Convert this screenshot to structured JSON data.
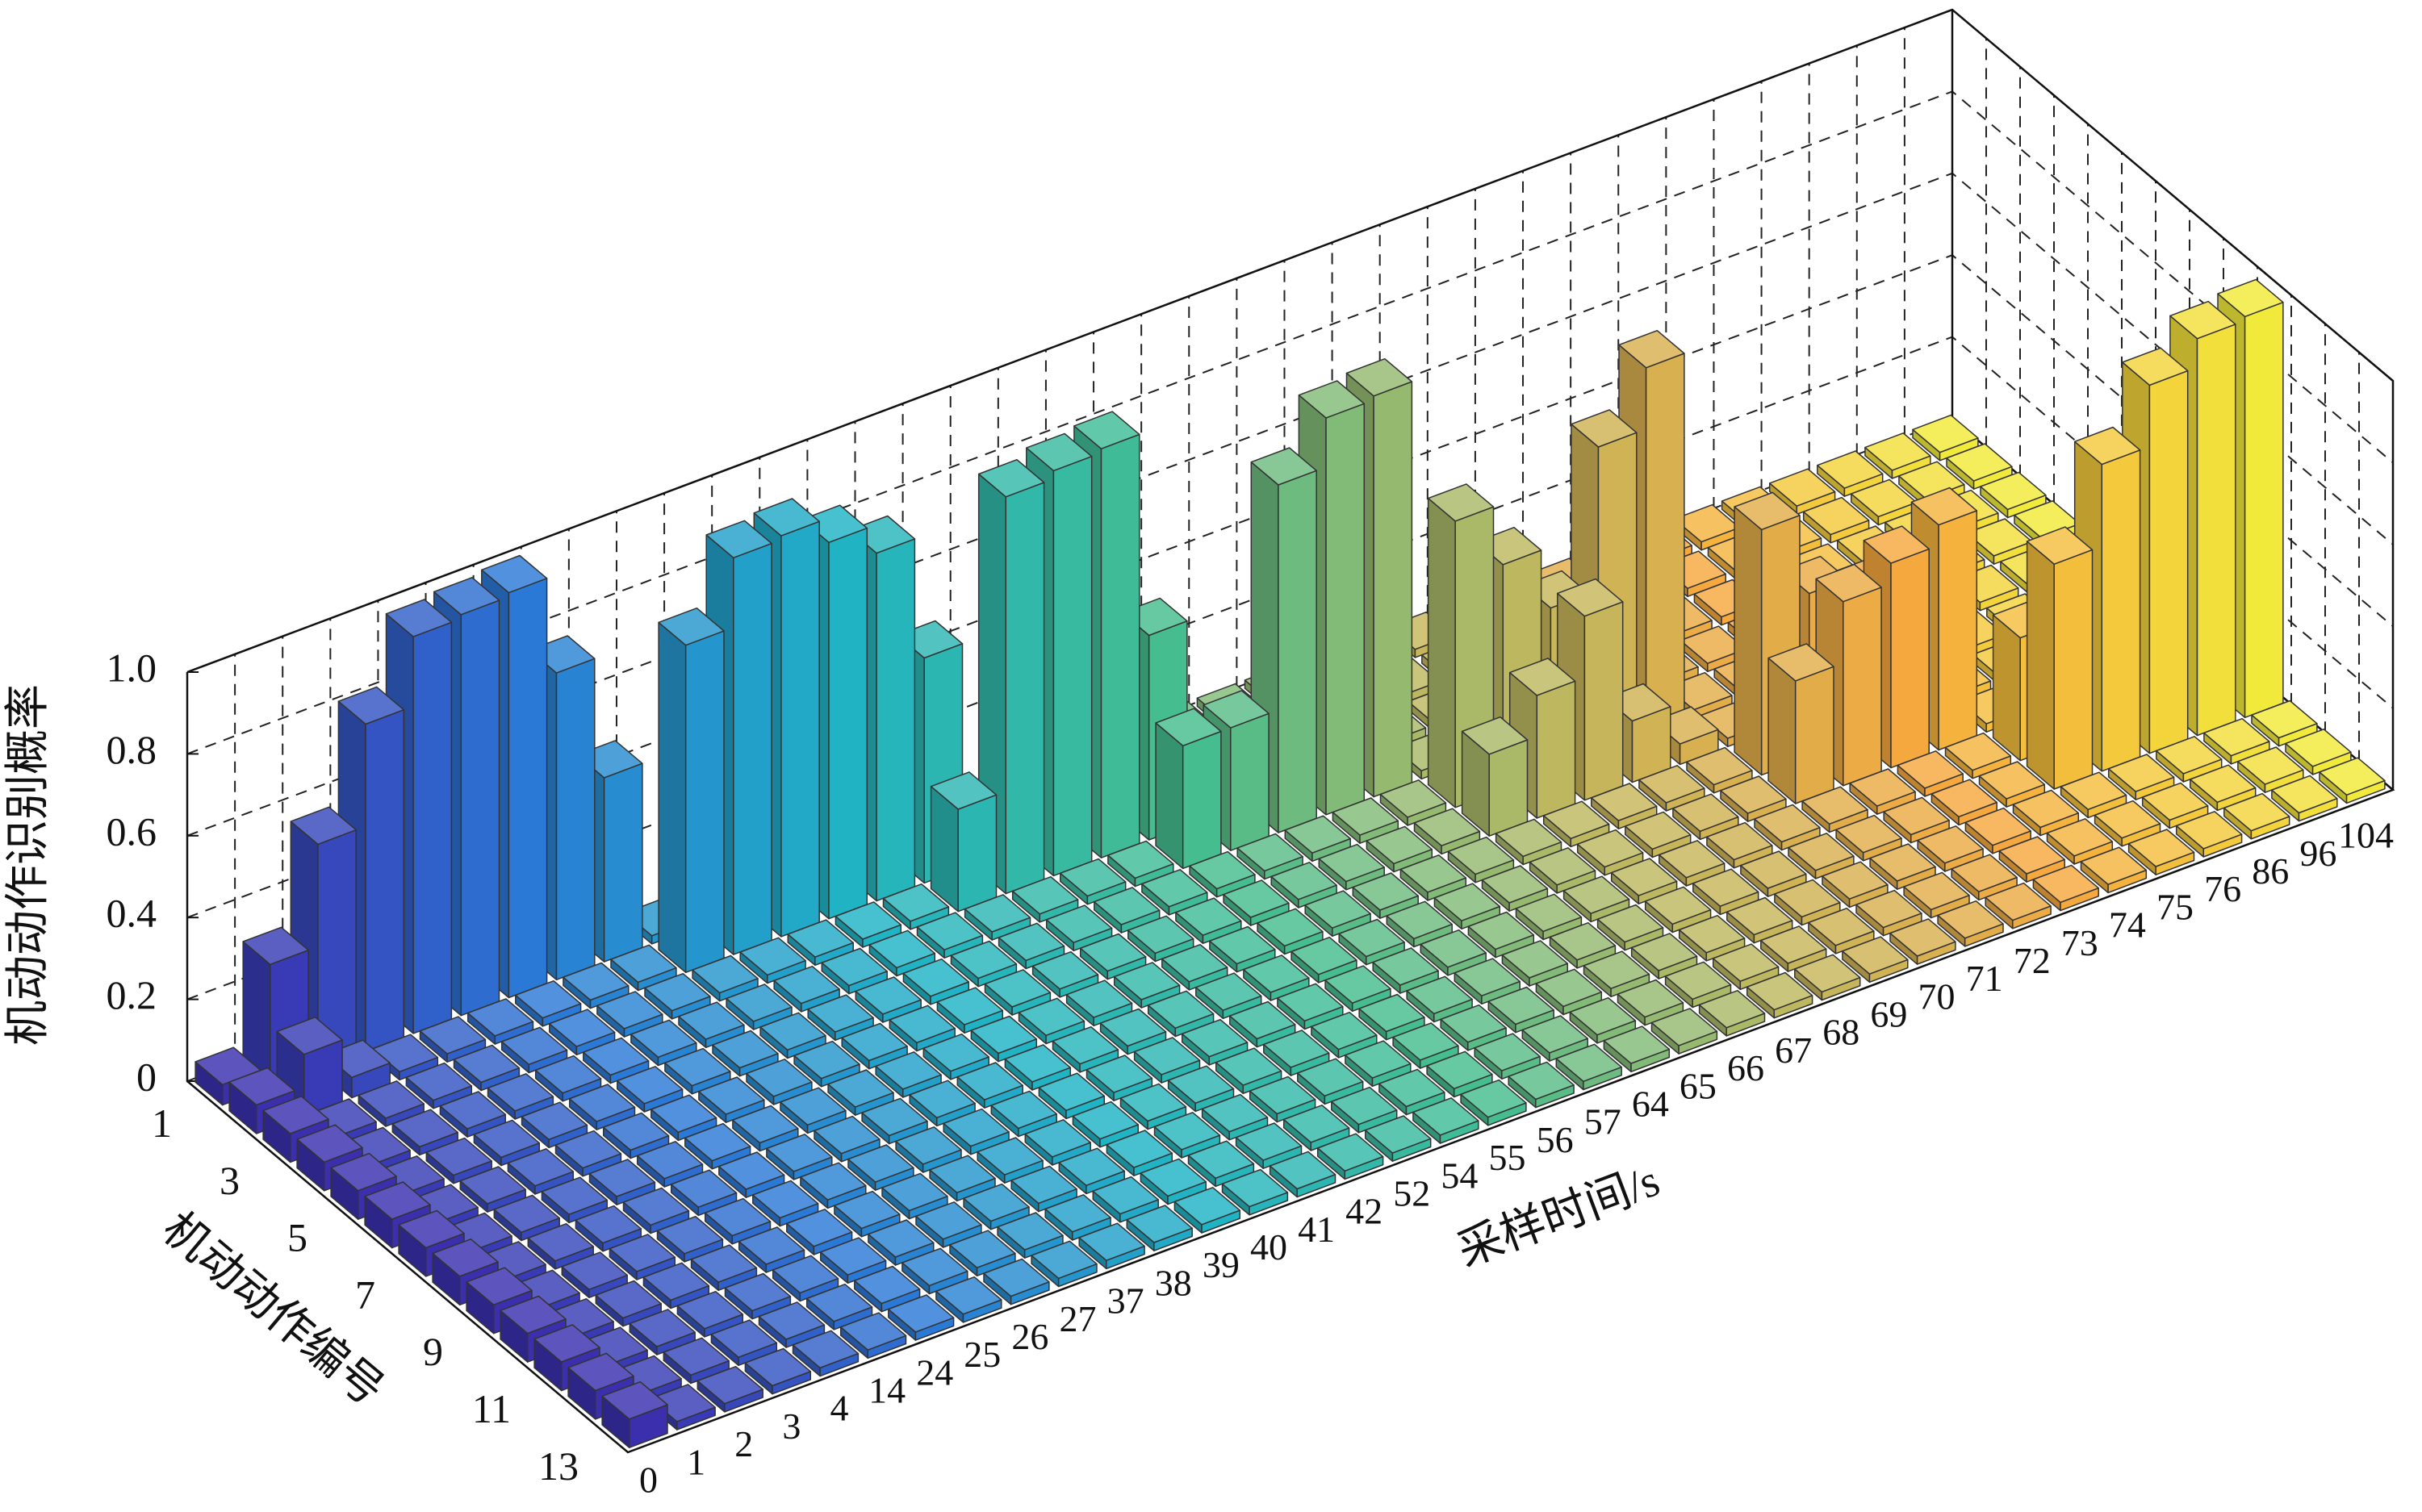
{
  "chart_data": {
    "type": "bar3d",
    "xlabel": "采样时间/s",
    "ylabel": "机动动作编号",
    "zlabel": "机动动作识别概率",
    "x": [
      "0",
      "1",
      "2",
      "3",
      "4",
      "14",
      "24",
      "25",
      "26",
      "27",
      "37",
      "38",
      "39",
      "40",
      "41",
      "42",
      "52",
      "54",
      "55",
      "56",
      "57",
      "64",
      "65",
      "66",
      "67",
      "68",
      "69",
      "70",
      "71",
      "72",
      "73",
      "74",
      "75",
      "76",
      "86",
      "96",
      "104"
    ],
    "y": [
      1,
      null,
      3,
      null,
      5,
      null,
      7,
      null,
      9,
      null,
      11,
      null,
      13
    ],
    "zlim": [
      0,
      1
    ],
    "zticks": [
      0,
      0.2,
      0.4,
      0.6,
      0.8,
      {
        "value": 1,
        "label": "1.0"
      }
    ],
    "grid": true,
    "colormap": [
      "#3b2fae",
      "#2b79d6",
      "#1fb3c4",
      "#45bd8e",
      "#bdb860",
      "#f5a83e",
      "#f2ea3a"
    ],
    "values": [
      [
        0.05,
        0.3,
        0.55,
        0.8,
        0.97,
        0.98,
        0.99,
        0.75,
        0.45,
        0.02,
        0.02,
        0.02,
        0.02,
        0.02,
        0.02,
        0.02,
        0.02,
        0.02,
        0.02,
        0.02,
        0.02,
        0.02,
        0.02,
        0.02,
        0.02,
        0.02,
        0.02,
        0.02,
        0.02,
        0.02,
        0.02,
        0.02,
        0.02,
        0.02,
        0.02,
        0.02,
        0.02
      ],
      [
        0.07,
        0.15,
        0.05,
        0.02,
        0.02,
        0.02,
        0.02,
        0.02,
        0.02,
        0.8,
        0.97,
        0.98,
        0.92,
        0.85,
        0.55,
        0.02,
        0.02,
        0.02,
        0.02,
        0.02,
        0.02,
        0.02,
        0.02,
        0.02,
        0.02,
        0.02,
        0.02,
        0.02,
        0.02,
        0.02,
        0.02,
        0.02,
        0.02,
        0.02,
        0.02,
        0.02,
        0.02
      ],
      [
        0.07,
        0.02,
        0.02,
        0.02,
        0.02,
        0.02,
        0.02,
        0.02,
        0.02,
        0.02,
        0.02,
        0.02,
        0.02,
        0.02,
        0.25,
        0.97,
        0.99,
        1.0,
        0.5,
        0.02,
        0.02,
        0.02,
        0.02,
        0.02,
        0.02,
        0.02,
        0.02,
        0.02,
        0.02,
        0.02,
        0.02,
        0.02,
        0.02,
        0.02,
        0.02,
        0.02,
        0.02
      ],
      [
        0.07,
        0.02,
        0.02,
        0.02,
        0.02,
        0.02,
        0.02,
        0.02,
        0.02,
        0.02,
        0.02,
        0.02,
        0.02,
        0.02,
        0.02,
        0.02,
        0.02,
        0.02,
        0.3,
        0.3,
        0.85,
        0.97,
        0.98,
        0.02,
        0.02,
        0.02,
        0.02,
        0.02,
        0.02,
        0.02,
        0.02,
        0.02,
        0.02,
        0.02,
        0.02,
        0.02,
        0.02
      ],
      [
        0.07,
        0.02,
        0.02,
        0.02,
        0.02,
        0.02,
        0.02,
        0.02,
        0.02,
        0.02,
        0.02,
        0.02,
        0.02,
        0.02,
        0.02,
        0.02,
        0.02,
        0.02,
        0.02,
        0.02,
        0.02,
        0.02,
        0.02,
        0.7,
        0.55,
        0.4,
        0.75,
        0.9,
        0.02,
        0.02,
        0.02,
        0.02,
        0.02,
        0.02,
        0.02,
        0.02,
        0.02
      ],
      [
        0.07,
        0.02,
        0.02,
        0.02,
        0.02,
        0.02,
        0.02,
        0.02,
        0.02,
        0.02,
        0.02,
        0.02,
        0.02,
        0.02,
        0.02,
        0.02,
        0.02,
        0.02,
        0.02,
        0.02,
        0.02,
        0.02,
        0.02,
        0.2,
        0.3,
        0.45,
        0.15,
        0.05,
        0.02,
        0.02,
        0.02,
        0.02,
        0.02,
        0.02,
        0.02,
        0.02,
        0.02
      ],
      [
        0.07,
        0.02,
        0.02,
        0.02,
        0.02,
        0.02,
        0.02,
        0.02,
        0.02,
        0.02,
        0.02,
        0.02,
        0.02,
        0.02,
        0.02,
        0.02,
        0.02,
        0.02,
        0.02,
        0.02,
        0.02,
        0.02,
        0.02,
        0.02,
        0.02,
        0.02,
        0.02,
        0.02,
        0.6,
        0.4,
        0.35,
        0.3,
        0.02,
        0.02,
        0.02,
        0.02,
        0.02
      ],
      [
        0.07,
        0.02,
        0.02,
        0.02,
        0.02,
        0.02,
        0.02,
        0.02,
        0.02,
        0.02,
        0.02,
        0.02,
        0.02,
        0.02,
        0.02,
        0.02,
        0.02,
        0.02,
        0.02,
        0.02,
        0.02,
        0.02,
        0.02,
        0.02,
        0.02,
        0.02,
        0.02,
        0.02,
        0.3,
        0.45,
        0.5,
        0.55,
        0.02,
        0.02,
        0.02,
        0.02,
        0.02
      ],
      [
        0.07,
        0.02,
        0.02,
        0.02,
        0.02,
        0.02,
        0.02,
        0.02,
        0.02,
        0.02,
        0.02,
        0.02,
        0.02,
        0.02,
        0.02,
        0.02,
        0.02,
        0.02,
        0.02,
        0.02,
        0.02,
        0.02,
        0.02,
        0.02,
        0.02,
        0.02,
        0.02,
        0.02,
        0.02,
        0.02,
        0.02,
        0.02,
        0.3,
        0.2,
        0.05,
        0.02,
        0.02
      ],
      [
        0.07,
        0.02,
        0.02,
        0.02,
        0.02,
        0.02,
        0.02,
        0.02,
        0.02,
        0.02,
        0.02,
        0.02,
        0.02,
        0.02,
        0.02,
        0.02,
        0.02,
        0.02,
        0.02,
        0.02,
        0.02,
        0.02,
        0.02,
        0.02,
        0.02,
        0.02,
        0.02,
        0.02,
        0.02,
        0.02,
        0.02,
        0.02,
        0.55,
        0.75,
        0.9,
        0.97,
        0.98
      ],
      [
        0.07,
        0.02,
        0.02,
        0.02,
        0.02,
        0.02,
        0.02,
        0.02,
        0.02,
        0.02,
        0.02,
        0.02,
        0.02,
        0.02,
        0.02,
        0.02,
        0.02,
        0.02,
        0.02,
        0.02,
        0.02,
        0.02,
        0.02,
        0.02,
        0.02,
        0.02,
        0.02,
        0.02,
        0.02,
        0.02,
        0.02,
        0.02,
        0.02,
        0.02,
        0.02,
        0.02,
        0.02
      ],
      [
        0.07,
        0.02,
        0.02,
        0.02,
        0.02,
        0.02,
        0.02,
        0.02,
        0.02,
        0.02,
        0.02,
        0.02,
        0.02,
        0.02,
        0.02,
        0.02,
        0.02,
        0.02,
        0.02,
        0.02,
        0.02,
        0.02,
        0.02,
        0.02,
        0.02,
        0.02,
        0.02,
        0.02,
        0.02,
        0.02,
        0.02,
        0.02,
        0.02,
        0.02,
        0.02,
        0.02,
        0.02
      ],
      [
        0.07,
        0.02,
        0.02,
        0.02,
        0.02,
        0.02,
        0.02,
        0.02,
        0.02,
        0.02,
        0.02,
        0.02,
        0.02,
        0.02,
        0.02,
        0.02,
        0.02,
        0.02,
        0.02,
        0.02,
        0.02,
        0.02,
        0.02,
        0.02,
        0.02,
        0.02,
        0.02,
        0.02,
        0.02,
        0.02,
        0.02,
        0.02,
        0.02,
        0.02,
        0.02,
        0.02,
        0.02
      ]
    ]
  }
}
